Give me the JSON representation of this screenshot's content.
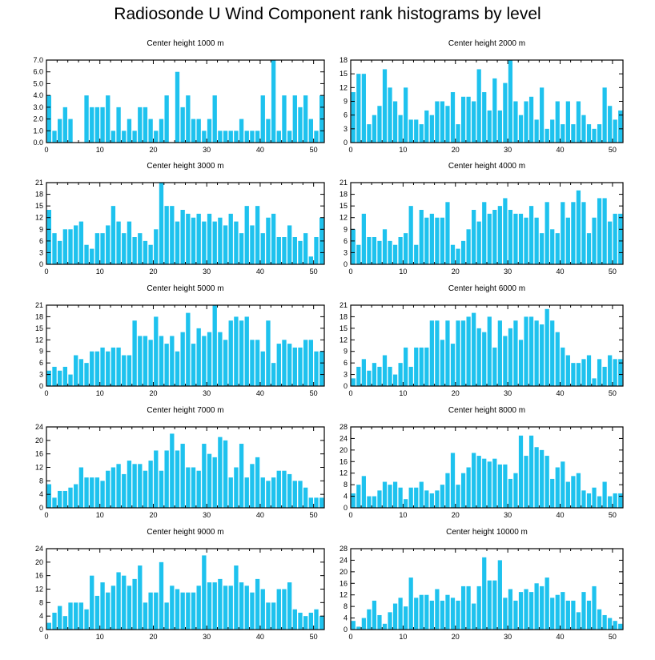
{
  "title": "Radiosonde U Wind Component rank histograms by level",
  "colors": {
    "bar": "#1ec2ee",
    "axis": "#000000",
    "background": "#ffffff"
  },
  "chart_data": [
    {
      "type": "bar",
      "title": "Center height 1000 m",
      "xlim": [
        0,
        52
      ],
      "ylim": [
        0,
        7
      ],
      "xticks": [
        0,
        10,
        20,
        30,
        40,
        50
      ],
      "yticks": [
        0,
        1,
        2,
        3,
        4,
        5,
        6,
        7
      ],
      "ytick_labels": [
        "0.0",
        "1.0",
        "2.0",
        "3.0",
        "4.0",
        "5.0",
        "6.0",
        "7.0"
      ],
      "values": [
        4,
        1,
        2,
        3,
        2,
        0,
        0,
        4,
        3,
        3,
        3,
        4,
        1,
        3,
        1,
        2,
        1,
        3,
        3,
        2,
        1,
        2,
        4,
        0,
        6,
        3,
        4,
        2,
        2,
        1,
        2,
        4,
        1,
        1,
        1,
        1,
        2,
        1,
        1,
        1,
        4,
        2,
        7,
        1,
        4,
        1,
        4,
        3,
        4,
        2,
        1,
        4
      ]
    },
    {
      "type": "bar",
      "title": "Center height 2000 m",
      "xlim": [
        0,
        52
      ],
      "ylim": [
        0,
        18
      ],
      "xticks": [
        0,
        10,
        20,
        30,
        40,
        50
      ],
      "yticks": [
        0,
        3,
        6,
        9,
        12,
        15,
        18
      ],
      "ytick_labels": [
        "0",
        "3",
        "6",
        "9",
        "12",
        "15",
        "18"
      ],
      "values": [
        11,
        15,
        15,
        4,
        6,
        8,
        16,
        12,
        9,
        6,
        12,
        5,
        5,
        4,
        7,
        6,
        9,
        9,
        8,
        11,
        4,
        10,
        10,
        9,
        16,
        11,
        7,
        14,
        7,
        13,
        18,
        9,
        6,
        9,
        10,
        5,
        12,
        3,
        5,
        9,
        4,
        9,
        4,
        9,
        6,
        4,
        3,
        4,
        12,
        8,
        5,
        7
      ]
    },
    {
      "type": "bar",
      "title": "Center height 3000 m",
      "xlim": [
        0,
        52
      ],
      "ylim": [
        0,
        21
      ],
      "xticks": [
        0,
        10,
        20,
        30,
        40,
        50
      ],
      "yticks": [
        0,
        3,
        6,
        9,
        12,
        15,
        18,
        21
      ],
      "ytick_labels": [
        "0",
        "3",
        "6",
        "9",
        "12",
        "15",
        "18",
        "21"
      ],
      "values": [
        14,
        8,
        6,
        9,
        9,
        10,
        11,
        5,
        4,
        8,
        8,
        10,
        15,
        11,
        8,
        11,
        7,
        8,
        6,
        5,
        9,
        21,
        15,
        15,
        11,
        14,
        13,
        12,
        13,
        11,
        13,
        11,
        12,
        10,
        13,
        11,
        8,
        15,
        10,
        15,
        8,
        12,
        13,
        7,
        7,
        10,
        7,
        6,
        8,
        2,
        7,
        12
      ]
    },
    {
      "type": "bar",
      "title": "Center height 4000 m",
      "xlim": [
        0,
        52
      ],
      "ylim": [
        0,
        21
      ],
      "xticks": [
        0,
        10,
        20,
        30,
        40,
        50
      ],
      "yticks": [
        0,
        3,
        6,
        9,
        12,
        15,
        18,
        21
      ],
      "ytick_labels": [
        "0",
        "3",
        "6",
        "9",
        "12",
        "15",
        "18",
        "21"
      ],
      "values": [
        9,
        5,
        13,
        7,
        7,
        6,
        9,
        6,
        5,
        7,
        8,
        15,
        5,
        14,
        12,
        13,
        12,
        12,
        16,
        5,
        4,
        6,
        9,
        14,
        11,
        16,
        13,
        14,
        15,
        17,
        14,
        13,
        13,
        12,
        15,
        12,
        8,
        16,
        9,
        8,
        16,
        12,
        16,
        19,
        16,
        8,
        12,
        17,
        17,
        11,
        13,
        13
      ]
    },
    {
      "type": "bar",
      "title": "Center height 5000 m",
      "xlim": [
        0,
        52
      ],
      "ylim": [
        0,
        21
      ],
      "xticks": [
        0,
        10,
        20,
        30,
        40,
        50
      ],
      "yticks": [
        0,
        3,
        6,
        9,
        12,
        15,
        18,
        21
      ],
      "ytick_labels": [
        "0",
        "3",
        "6",
        "9",
        "12",
        "15",
        "18",
        "21"
      ],
      "values": [
        4,
        5,
        4,
        5,
        3,
        8,
        7,
        6,
        9,
        9,
        10,
        9,
        10,
        10,
        8,
        8,
        17,
        13,
        13,
        12,
        18,
        13,
        11,
        13,
        9,
        14,
        19,
        11,
        15,
        13,
        14,
        21,
        14,
        12,
        17,
        18,
        17,
        18,
        12,
        12,
        9,
        17,
        6,
        11,
        12,
        11,
        10,
        10,
        12,
        12,
        9,
        9
      ]
    },
    {
      "type": "bar",
      "title": "Center height 6000 m",
      "xlim": [
        0,
        52
      ],
      "ylim": [
        0,
        21
      ],
      "xticks": [
        0,
        10,
        20,
        30,
        40,
        50
      ],
      "yticks": [
        0,
        3,
        6,
        9,
        12,
        15,
        18,
        21
      ],
      "ytick_labels": [
        "0",
        "3",
        "6",
        "9",
        "12",
        "15",
        "18",
        "21"
      ],
      "values": [
        2,
        5,
        7,
        4,
        6,
        5,
        8,
        5,
        3,
        6,
        10,
        5,
        10,
        10,
        10,
        17,
        17,
        12,
        17,
        11,
        17,
        17,
        18,
        19,
        15,
        14,
        18,
        10,
        17,
        13,
        15,
        17,
        12,
        18,
        18,
        17,
        16,
        20,
        17,
        14,
        10,
        8,
        6,
        6,
        7,
        8,
        2,
        7,
        5,
        8,
        7,
        7
      ]
    },
    {
      "type": "bar",
      "title": "Center height 7000 m",
      "xlim": [
        0,
        52
      ],
      "ylim": [
        0,
        24
      ],
      "xticks": [
        0,
        10,
        20,
        30,
        40,
        50
      ],
      "yticks": [
        0,
        4,
        8,
        12,
        16,
        20,
        24
      ],
      "ytick_labels": [
        "0",
        "4",
        "8",
        "12",
        "16",
        "20",
        "24"
      ],
      "values": [
        7,
        3,
        5,
        5,
        6,
        7,
        12,
        9,
        9,
        9,
        8,
        11,
        12,
        13,
        10,
        14,
        13,
        13,
        11,
        14,
        17,
        11,
        17,
        22,
        17,
        19,
        12,
        12,
        11,
        19,
        16,
        15,
        21,
        20,
        9,
        12,
        19,
        9,
        13,
        15,
        9,
        8,
        9,
        11,
        11,
        10,
        8,
        8,
        6,
        3,
        3,
        3
      ]
    },
    {
      "type": "bar",
      "title": "Center height 8000 m",
      "xlim": [
        0,
        52
      ],
      "ylim": [
        0,
        28
      ],
      "xticks": [
        0,
        10,
        20,
        30,
        40,
        50
      ],
      "yticks": [
        0,
        4,
        8,
        12,
        16,
        20,
        24,
        28
      ],
      "ytick_labels": [
        "0",
        "4",
        "8",
        "12",
        "16",
        "20",
        "24",
        "28"
      ],
      "values": [
        5,
        8,
        11,
        4,
        4,
        6,
        9,
        8,
        9,
        7,
        3,
        7,
        7,
        9,
        6,
        5,
        6,
        8,
        12,
        19,
        8,
        12,
        14,
        19,
        18,
        17,
        16,
        17,
        15,
        15,
        10,
        12,
        25,
        18,
        25,
        21,
        20,
        18,
        10,
        14,
        16,
        9,
        11,
        12,
        6,
        5,
        7,
        4,
        9,
        4,
        5,
        5
      ]
    },
    {
      "type": "bar",
      "title": "Center height 9000 m",
      "xlim": [
        0,
        52
      ],
      "ylim": [
        0,
        24
      ],
      "xticks": [
        0,
        10,
        20,
        30,
        40,
        50
      ],
      "yticks": [
        0,
        4,
        8,
        12,
        16,
        20,
        24
      ],
      "ytick_labels": [
        "0",
        "4",
        "8",
        "12",
        "16",
        "20",
        "24"
      ],
      "values": [
        2,
        5,
        7,
        4,
        8,
        8,
        8,
        6,
        16,
        10,
        14,
        11,
        13,
        17,
        16,
        13,
        15,
        19,
        8,
        11,
        11,
        20,
        8,
        13,
        12,
        11,
        11,
        11,
        13,
        22,
        14,
        14,
        15,
        13,
        13,
        19,
        14,
        13,
        11,
        15,
        12,
        8,
        8,
        12,
        12,
        14,
        6,
        5,
        4,
        5,
        6,
        4
      ]
    },
    {
      "type": "bar",
      "title": "Center height 10000 m",
      "xlim": [
        0,
        52
      ],
      "ylim": [
        0,
        28
      ],
      "xticks": [
        0,
        10,
        20,
        30,
        40,
        50
      ],
      "yticks": [
        0,
        4,
        8,
        12,
        16,
        20,
        24,
        28
      ],
      "ytick_labels": [
        "0",
        "4",
        "8",
        "12",
        "16",
        "20",
        "24",
        "28"
      ],
      "values": [
        3,
        1,
        4,
        7,
        10,
        5,
        2,
        6,
        9,
        11,
        8,
        18,
        11,
        12,
        12,
        10,
        14,
        10,
        12,
        11,
        10,
        15,
        15,
        9,
        15,
        25,
        17,
        17,
        24,
        11,
        14,
        10,
        13,
        14,
        13,
        16,
        15,
        18,
        11,
        12,
        13,
        10,
        10,
        6,
        13,
        10,
        15,
        7,
        5,
        4,
        3,
        2
      ]
    }
  ]
}
